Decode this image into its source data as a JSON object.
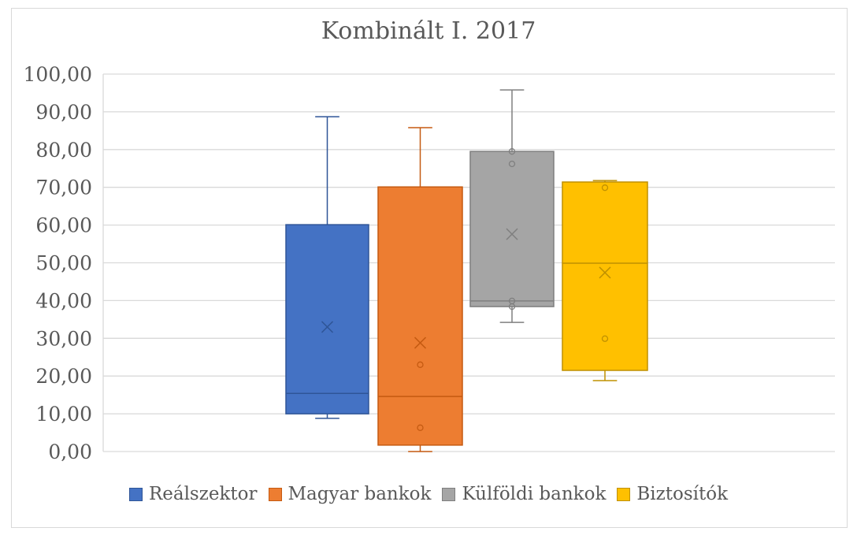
{
  "chart_data": {
    "type": "boxplot",
    "title": "Kombinált I. 2017",
    "xlabel": "",
    "ylabel": "",
    "ylim": [
      0,
      100
    ],
    "yticks": [
      "0,00",
      "10,00",
      "20,00",
      "30,00",
      "40,00",
      "50,00",
      "60,00",
      "70,00",
      "80,00",
      "90,00",
      "100,00"
    ],
    "grid": true,
    "legend_position": "bottom",
    "series": [
      {
        "name": "Reálszektor",
        "color": "#4472c4",
        "border": "#2f5597",
        "whisker_low": 8.8,
        "q1": 10.0,
        "median": 15.4,
        "q3": 60.1,
        "whisker_high": 88.7,
        "mean": 33.0,
        "points": []
      },
      {
        "name": "Magyar bankok",
        "color": "#ed7d31",
        "border": "#c55a11",
        "whisker_low": 0.0,
        "q1": 1.7,
        "median": 14.6,
        "q3": 70.1,
        "whisker_high": 85.8,
        "mean": 28.8,
        "points": [
          23.0,
          6.3
        ]
      },
      {
        "name": "Külföldi bankok",
        "color": "#a5a5a5",
        "border": "#7f7f7f",
        "whisker_low": 34.2,
        "q1": 38.4,
        "median": 39.9,
        "q3": 79.5,
        "whisker_high": 95.8,
        "mean": 57.6,
        "points": [
          79.5,
          76.2,
          39.9,
          38.4
        ]
      },
      {
        "name": "Biztosítók",
        "color": "#ffc000",
        "border": "#bf9000",
        "whisker_low": 18.8,
        "q1": 21.5,
        "median": 49.9,
        "q3": 71.4,
        "whisker_high": 71.8,
        "mean": 47.4,
        "points": [
          69.9,
          29.9
        ]
      }
    ]
  }
}
